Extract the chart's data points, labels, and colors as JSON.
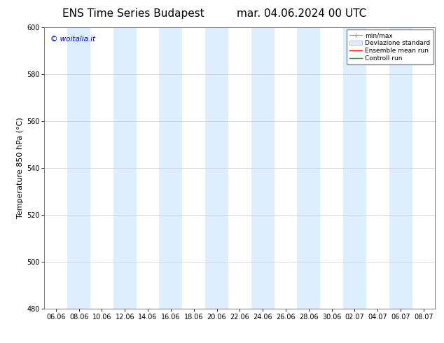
{
  "title_left": "ENS Time Series Budapest",
  "title_right": "mar. 04.06.2024 00 UTC",
  "ylabel": "Temperature 850 hPa (°C)",
  "ylim": [
    480,
    600
  ],
  "yticks": [
    480,
    500,
    520,
    540,
    560,
    580,
    600
  ],
  "xtick_labels": [
    "06.06",
    "08.06",
    "10.06",
    "12.06",
    "14.06",
    "16.06",
    "18.06",
    "20.06",
    "22.06",
    "24.06",
    "26.06",
    "28.06",
    "30.06",
    "02.07",
    "04.07",
    "06.07",
    "08.07"
  ],
  "watermark": "© woitalia.it",
  "watermark_color": "#0000cc",
  "bg_color": "#ffffff",
  "plot_bg_color": "#ffffff",
  "shaded_band_color": "#ddeeff",
  "shaded_band_alpha": 1.0,
  "legend_entries": [
    "min/max",
    "Deviazione standard",
    "Ensemble mean run",
    "Controll run"
  ],
  "legend_colors_line": [
    "#aaaaaa",
    "#bbccdd",
    "#ff0000",
    "#00aa00"
  ],
  "shaded_columns": [
    1,
    3,
    5,
    7,
    9,
    11,
    13,
    15
  ],
  "title_fontsize": 11,
  "label_fontsize": 8,
  "tick_fontsize": 7,
  "watermark_fontsize": 7.5,
  "legend_fontsize": 6.5
}
